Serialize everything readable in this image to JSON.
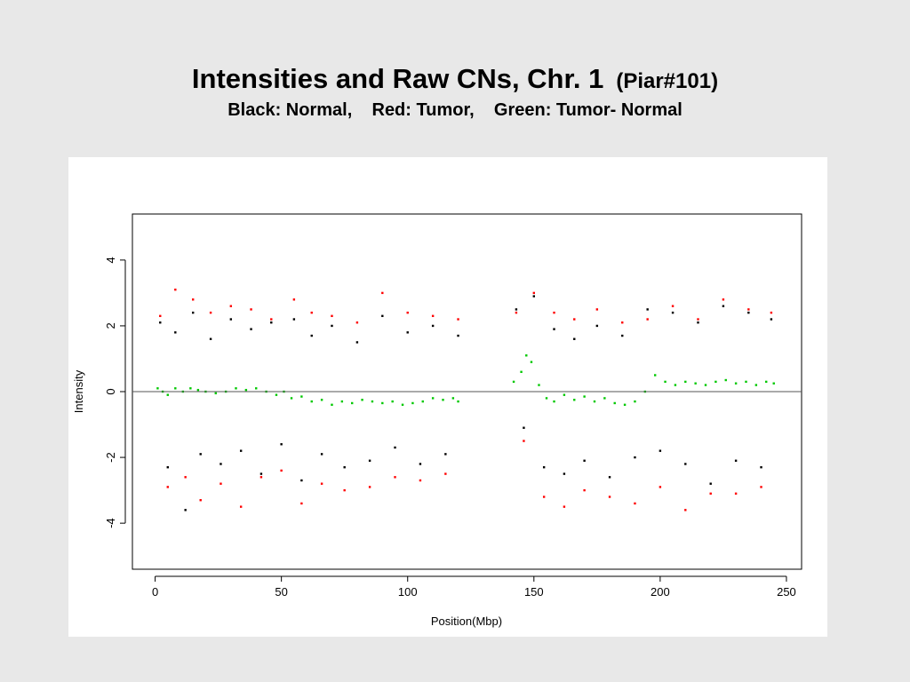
{
  "slide": {
    "title": "Intensities and Raw CNs,  Chr. 1",
    "title_sub": "(Piar#101)",
    "subtitle": "Black: Normal,    Red: Tumor,    Green: Tumor- Normal"
  },
  "colors": {
    "background": "#e8e8e8",
    "panel": "#ffffff",
    "normal": "#000000",
    "tumor": "#ff0000",
    "difference": "#00c800",
    "baseline": "#555555"
  },
  "chart_data": {
    "type": "scatter",
    "xlabel": "Position(Mbp)",
    "ylabel": "Intensity",
    "xlim": [
      -9,
      256
    ],
    "ylim": [
      -5.4,
      5.4
    ],
    "xticks": [
      0,
      50,
      100,
      150,
      200,
      250
    ],
    "yticks": [
      -4,
      -2,
      0,
      2,
      4
    ],
    "hline": 0,
    "grid": false,
    "legend": "none",
    "series": [
      {
        "name": "Normal",
        "color": "#000000",
        "x": [
          2,
          5,
          8,
          12,
          15,
          18,
          22,
          26,
          30,
          34,
          38,
          42,
          46,
          50,
          55,
          58,
          62,
          66,
          70,
          75,
          80,
          85,
          90,
          95,
          100,
          105,
          110,
          115,
          120,
          143,
          146,
          150,
          154,
          158,
          162,
          166,
          170,
          175,
          180,
          185,
          190,
          195,
          200,
          205,
          210,
          215,
          220,
          225,
          230,
          235,
          240,
          244
        ],
        "y": [
          2.1,
          -2.3,
          1.8,
          -3.6,
          2.4,
          -1.9,
          1.6,
          -2.2,
          2.2,
          -1.8,
          1.9,
          -2.5,
          2.1,
          -1.6,
          2.2,
          -2.7,
          1.7,
          -1.9,
          2.0,
          -2.3,
          1.5,
          -2.1,
          2.3,
          -1.7,
          1.8,
          -2.2,
          2.0,
          -1.9,
          1.7,
          2.5,
          -1.1,
          2.9,
          -2.3,
          1.9,
          -2.5,
          1.6,
          -2.1,
          2.0,
          -2.6,
          1.7,
          -2.0,
          2.5,
          -1.8,
          2.4,
          -2.2,
          2.1,
          -2.8,
          2.6,
          -2.1,
          2.4,
          -2.3,
          2.2
        ]
      },
      {
        "name": "Tumor",
        "color": "#ff0000",
        "x": [
          2,
          5,
          8,
          12,
          15,
          18,
          22,
          26,
          30,
          34,
          38,
          42,
          46,
          50,
          55,
          58,
          62,
          66,
          70,
          75,
          80,
          85,
          90,
          95,
          100,
          105,
          110,
          115,
          120,
          143,
          146,
          150,
          154,
          158,
          162,
          166,
          170,
          175,
          180,
          185,
          190,
          195,
          200,
          205,
          210,
          215,
          220,
          225,
          230,
          235,
          240,
          244
        ],
        "y": [
          2.3,
          -2.9,
          3.1,
          -2.6,
          2.8,
          -3.3,
          2.4,
          -2.8,
          2.6,
          -3.5,
          2.5,
          -2.6,
          2.2,
          -2.4,
          2.8,
          -3.4,
          2.4,
          -2.8,
          2.3,
          -3.0,
          2.1,
          -2.9,
          3.0,
          -2.6,
          2.4,
          -2.7,
          2.3,
          -2.5,
          2.2,
          2.4,
          -1.5,
          3.0,
          -3.2,
          2.4,
          -3.5,
          2.2,
          -3.0,
          2.5,
          -3.2,
          2.1,
          -3.4,
          2.2,
          -2.9,
          2.6,
          -3.6,
          2.2,
          -3.1,
          2.8,
          -3.1,
          2.5,
          -2.9,
          2.4
        ]
      },
      {
        "name": "Tumor- Normal",
        "color": "#00c800",
        "x": [
          1,
          3,
          5,
          8,
          11,
          14,
          17,
          20,
          24,
          28,
          32,
          36,
          40,
          44,
          48,
          51,
          54,
          58,
          62,
          66,
          70,
          74,
          78,
          82,
          86,
          90,
          94,
          98,
          102,
          106,
          110,
          114,
          118,
          120,
          142,
          145,
          147,
          149,
          152,
          155,
          158,
          162,
          166,
          170,
          174,
          178,
          182,
          186,
          190,
          194,
          198,
          202,
          206,
          210,
          214,
          218,
          222,
          226,
          230,
          234,
          238,
          242,
          245
        ],
        "y": [
          0.1,
          0.0,
          -0.1,
          0.1,
          0.0,
          0.1,
          0.05,
          0.0,
          -0.05,
          0.0,
          0.1,
          0.05,
          0.1,
          0.0,
          -0.1,
          0.0,
          -0.2,
          -0.15,
          -0.3,
          -0.25,
          -0.4,
          -0.3,
          -0.35,
          -0.25,
          -0.3,
          -0.35,
          -0.3,
          -0.4,
          -0.35,
          -0.3,
          -0.2,
          -0.25,
          -0.2,
          -0.3,
          0.3,
          0.6,
          1.1,
          0.9,
          0.2,
          -0.2,
          -0.3,
          -0.1,
          -0.25,
          -0.15,
          -0.3,
          -0.2,
          -0.35,
          -0.4,
          -0.3,
          0.0,
          0.5,
          0.3,
          0.2,
          0.3,
          0.25,
          0.2,
          0.3,
          0.35,
          0.25,
          0.3,
          0.2,
          0.3,
          0.25
        ]
      }
    ]
  }
}
